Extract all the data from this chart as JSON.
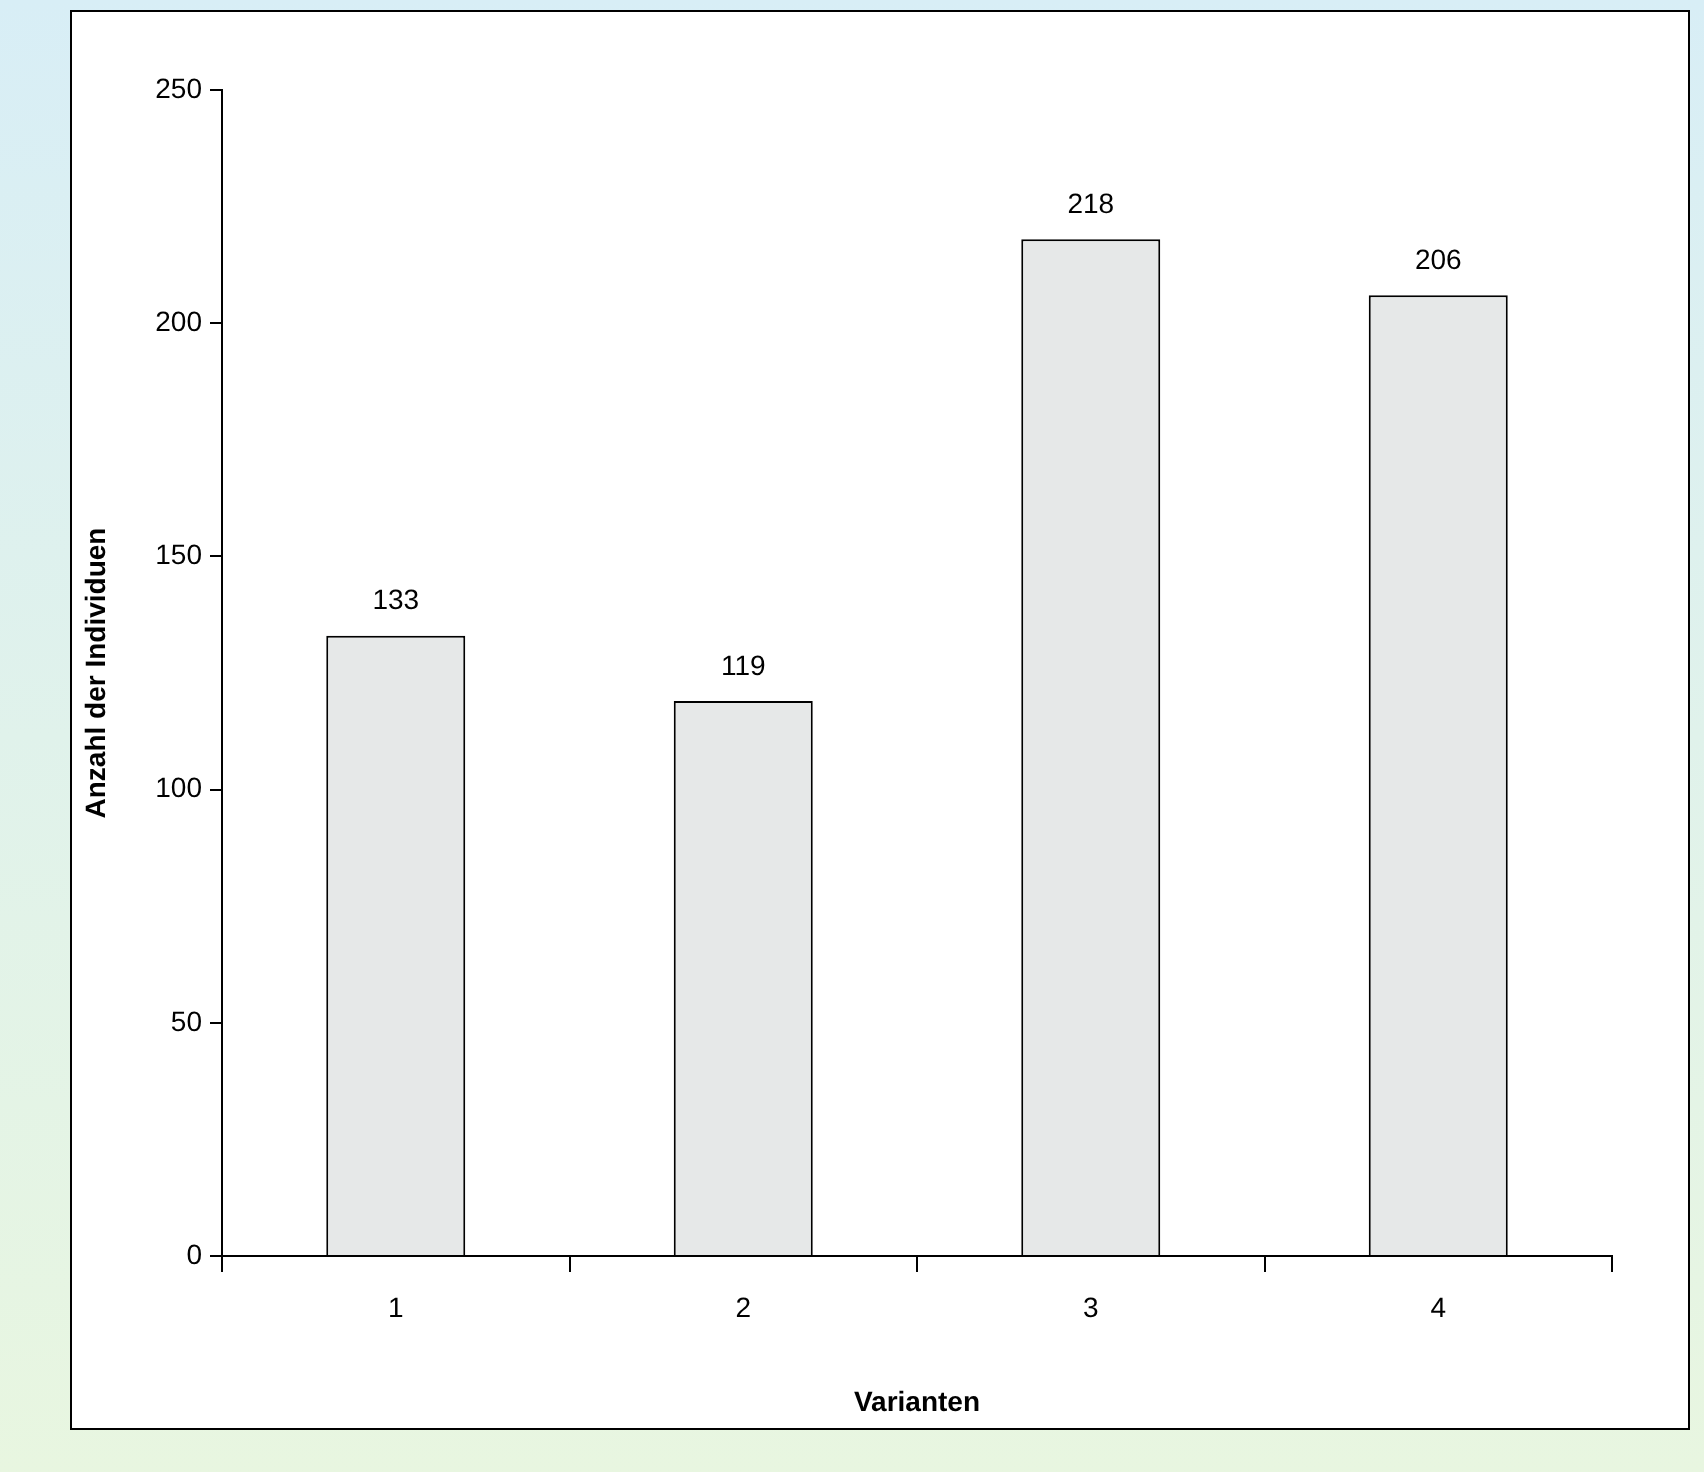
{
  "chart_data": {
    "type": "bar",
    "xlabel": "Varianten",
    "ylabel": "Anzahl der Individuen",
    "categories": [
      "1",
      "2",
      "3",
      "4"
    ],
    "values": [
      133,
      119,
      218,
      206
    ],
    "color": "#e6e8e8",
    "ylim": [
      0,
      250
    ],
    "yticks": [
      0,
      50,
      100,
      150,
      200,
      250
    ],
    "grid": false,
    "legend": false,
    "data_labels": true
  }
}
